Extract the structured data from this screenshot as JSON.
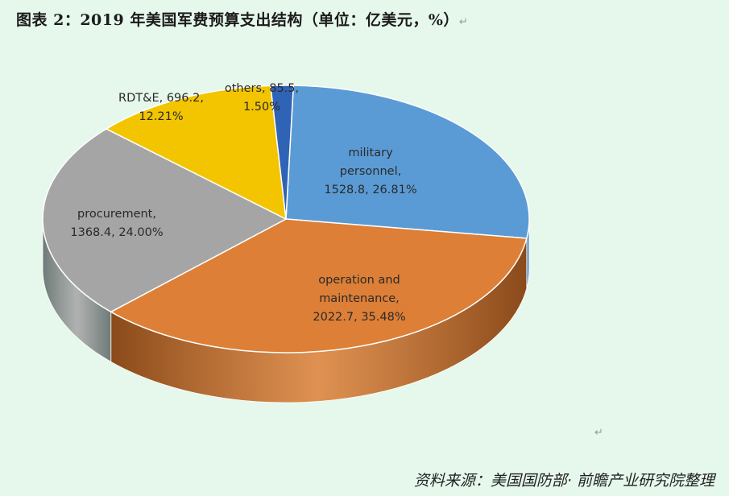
{
  "title": "图表 2：2019 年美国军费预算支出结构（单位：亿美元，%）",
  "return_mark": "↵",
  "source": "资料来源：美国国防部· 前瞻产业研究院整理",
  "chart_data": {
    "type": "pie",
    "style": "3d",
    "title": "图表 2：2019 年美国军费预算支出结构（单位：亿美元，%）",
    "unit": "亿美元",
    "slices": [
      {
        "name": "military personnel",
        "label_lines": [
          "military",
          "personnel,",
          "1528.8, 26.81%"
        ],
        "value": 1528.8,
        "percent": 26.81,
        "color": "#5b9bd5",
        "side": "#2e6a9e"
      },
      {
        "name": "operation and maintenance",
        "label_lines": [
          "operation and",
          "maintenance,",
          "2022.7, 35.48%"
        ],
        "value": 2022.7,
        "percent": 35.48,
        "color": "#dd7f36",
        "side": "#8a4a1a"
      },
      {
        "name": "procurement",
        "label_lines": [
          "procurement,",
          "1368.4, 24.00%"
        ],
        "value": 1368.4,
        "percent": 24.0,
        "color": "#a5a5a5",
        "side": "#6e7a78"
      },
      {
        "name": "RDT&E",
        "label_lines": [
          "RDT&E, 696.2,",
          "12.21%"
        ],
        "value": 696.2,
        "percent": 12.21,
        "color": "#f2c500",
        "side": "#9a7d00"
      },
      {
        "name": "others",
        "label_lines": [
          "others, 85.5,",
          "1.50%"
        ],
        "value": 85.5,
        "percent": 1.5,
        "color": "#2f63b5",
        "side": "#1d3f75"
      }
    ]
  }
}
